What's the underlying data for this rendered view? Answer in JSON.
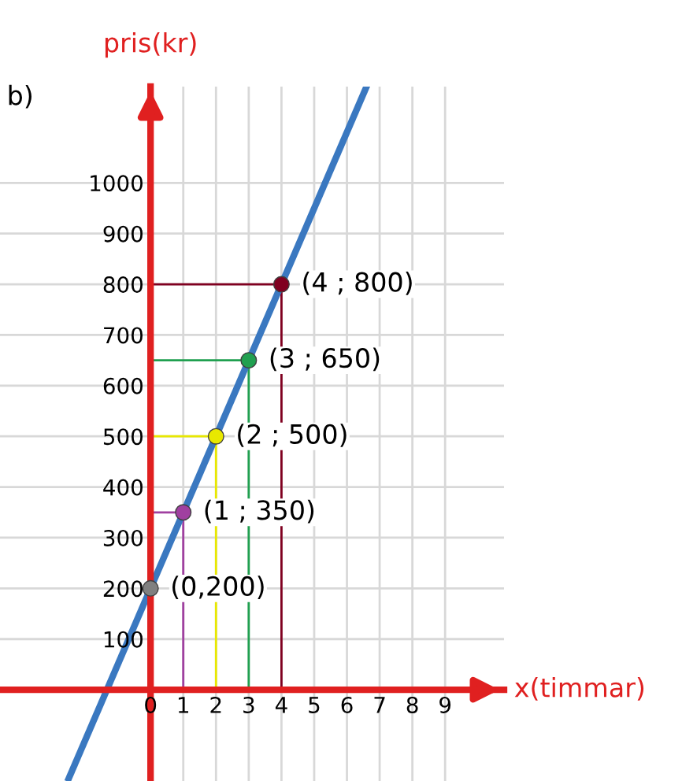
{
  "chart_data": {
    "type": "line",
    "xlabel": "x(timmar)",
    "ylabel": "pris(kr)",
    "xlim": [
      -4.6,
      10.8
    ],
    "ylim": [
      -180,
      1190
    ],
    "xticks": [
      0,
      1,
      2,
      3,
      4,
      5,
      6,
      7,
      8,
      9
    ],
    "yticks": [
      100,
      200,
      300,
      400,
      500,
      600,
      700,
      800,
      900,
      1000
    ],
    "grid": true,
    "series": [
      {
        "color": "#800020",
        "x": [
          0,
          4,
          4
        ],
        "values": [
          800,
          800,
          0
        ]
      },
      {
        "color": "#20a050",
        "x": [
          0,
          3,
          3
        ],
        "values": [
          650,
          650,
          0
        ]
      },
      {
        "color": "#e8e800",
        "x": [
          0,
          2,
          2
        ],
        "values": [
          500,
          500,
          0
        ]
      },
      {
        "color": "#a040a0",
        "x": [
          0,
          1,
          1
        ],
        "values": [
          350,
          350,
          0
        ]
      },
      {
        "color": "#3a78c0",
        "x": [
          -2.5,
          6.6
        ],
        "values": [
          -175,
          1190
        ]
      },
      {
        "type": "scatter",
        "marker": "circle",
        "x": [
          0,
          1,
          2,
          3,
          4
        ],
        "values": [
          200,
          350,
          500,
          650,
          800
        ],
        "colors": [
          "#808080",
          "#a040a0",
          "#e8e800",
          "#20a050",
          "#800020"
        ]
      }
    ],
    "annotations": [
      "b)",
      {
        "text": "(0,200)",
        "x": 0,
        "y": 200
      },
      {
        "text": "(1 ; 350)",
        "x": 1,
        "y": 350
      },
      {
        "text": "(2 ; 500)",
        "x": 2,
        "y": 500
      },
      {
        "text": "(3 ; 650)",
        "x": 3,
        "y": 650
      },
      {
        "text": "(4 ; 800)",
        "x": 4,
        "y": 800
      }
    ]
  }
}
